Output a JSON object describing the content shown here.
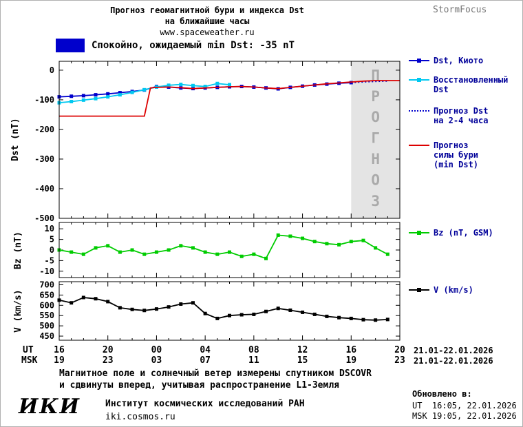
{
  "header": {
    "title_line1": "Прогноз геомагнитной бури и индекса Dst",
    "title_line2": "на ближайшие часы",
    "url": "www.spaceweather.ru",
    "brand": "StormFocus"
  },
  "status": {
    "label": "Спокойно, ожидаемый min Dst: -35 nT",
    "box_color": "#0000cc"
  },
  "chart_data": {
    "type": "line",
    "xlim": [
      0,
      28
    ],
    "x_unit": "hours, ticks every 4h starting 16:00 UT 21.01.2026",
    "panels": [
      {
        "id": "dst",
        "ylabel": "Dst (nT)",
        "ylim": [
          30,
          -500
        ],
        "yticks": [
          0,
          -100,
          -200,
          -300,
          -400,
          -500
        ],
        "forecast_band": {
          "from": 24,
          "to": 28,
          "label": "ПРОГНОЗ",
          "fill": "#e4e4e4",
          "text_color": "#aaaaaa"
        },
        "series": [
          {
            "name": "Dst, Киото",
            "color": "#0000cc",
            "marker": true,
            "x": [
              0,
              1,
              2,
              3,
              4,
              5,
              6,
              7,
              8,
              9,
              10,
              11,
              12,
              13,
              14,
              15,
              16,
              17,
              18,
              19,
              20,
              21,
              22,
              23,
              24
            ],
            "y": [
              -90,
              -88,
              -86,
              -83,
              -80,
              -76,
              -72,
              -67,
              -55,
              -57,
              -60,
              -62,
              -60,
              -58,
              -56,
              -55,
              -57,
              -60,
              -63,
              -58,
              -54,
              -50,
              -47,
              -44,
              -42
            ]
          },
          {
            "name": "Восстановленный Dst",
            "color": "#00c8f0",
            "marker": true,
            "x": [
              0,
              1,
              2,
              3,
              4,
              5,
              6,
              7,
              8,
              9,
              10,
              11,
              12,
              13,
              14
            ],
            "y": [
              -110,
              -106,
              -101,
              -96,
              -90,
              -83,
              -75,
              -66,
              -57,
              -51,
              -48,
              -52,
              -55,
              -45,
              -49
            ]
          },
          {
            "name": "Прогноз Dst на 2-4 часа",
            "color": "#0000cc",
            "dashed": true,
            "x": [
              24,
              25,
              26,
              27
            ],
            "y": [
              -42,
              -40,
              -38,
              -37
            ]
          },
          {
            "name": "Прогноз силы бури (min Dst)",
            "color": "#dd0000",
            "x": [
              0,
              7,
              7.5,
              8,
              9,
              10,
              11,
              12,
              13,
              14,
              15,
              16,
              17,
              18,
              19,
              20,
              21,
              22,
              23,
              24,
              25,
              26,
              27,
              28
            ],
            "y": [
              -155,
              -155,
              -60,
              -58,
              -57,
              -59,
              -62,
              -60,
              -58,
              -56,
              -55,
              -57,
              -60,
              -62,
              -58,
              -54,
              -50,
              -46,
              -43,
              -40,
              -37,
              -35,
              -35,
              -35
            ]
          }
        ]
      },
      {
        "id": "bz",
        "ylabel": "Bz (nT)",
        "ylim": [
          13,
          -13
        ],
        "yticks": [
          10,
          5,
          0,
          -5,
          -10
        ],
        "series": [
          {
            "name": "Bz (nT, GSM)",
            "color": "#00cc00",
            "marker": true,
            "x": [
              0,
              1,
              2,
              3,
              4,
              5,
              6,
              7,
              8,
              9,
              10,
              11,
              12,
              13,
              14,
              15,
              16,
              17,
              18,
              19,
              20,
              21,
              22,
              23,
              24,
              25,
              26,
              27
            ],
            "y": [
              0,
              -1,
              -2,
              1,
              2,
              -1,
              0,
              -2,
              -1,
              0,
              2,
              1,
              -1,
              -2,
              -1,
              -3,
              -2,
              -4,
              7,
              6.5,
              5.5,
              4,
              3,
              2.5,
              4,
              4.5,
              1,
              -2
            ]
          }
        ]
      },
      {
        "id": "v",
        "ylabel": "V (km/s)",
        "ylim": [
          715,
          430
        ],
        "yticks": [
          700,
          650,
          600,
          550,
          500,
          450
        ],
        "series": [
          {
            "name": "V (km/s)",
            "color": "#000000",
            "marker": true,
            "x": [
              0,
              1,
              2,
              3,
              4,
              5,
              6,
              7,
              8,
              9,
              10,
              11,
              12,
              13,
              14,
              15,
              16,
              17,
              18,
              19,
              20,
              21,
              22,
              23,
              24,
              25,
              26,
              27
            ],
            "y": [
              625,
              612,
              638,
              632,
              618,
              588,
              580,
              575,
              582,
              592,
              606,
              612,
              560,
              536,
              550,
              554,
              556,
              570,
              585,
              576,
              566,
              556,
              546,
              540,
              536,
              530,
              528,
              531
            ]
          }
        ]
      }
    ],
    "xaxis": {
      "ut_label": "UT",
      "msk_label": "MSK",
      "ut_ticks": [
        "16",
        "20",
        "00",
        "04",
        "08",
        "12",
        "16",
        "20"
      ],
      "msk_ticks": [
        "19",
        "23",
        "03",
        "07",
        "11",
        "15",
        "19",
        "23"
      ],
      "ut_date": "21.01-22.01.2026",
      "msk_date": "21.01-22.01.2026"
    }
  },
  "footer": {
    "note_line1": "Магнитное поле и солнечный ветер измерены спутником DSCOVR",
    "note_line2": "и сдвинуты вперед, учитывая распространение L1-Земля",
    "logo": "ИКИ",
    "institute": "Институт космических исследований РАН",
    "site": "iki.cosmos.ru",
    "updated_label": "Обновлено в:",
    "updated_ut": "UT  16:05, 22.01.2026",
    "updated_msk": "MSK 19:05, 22.01.2026"
  }
}
